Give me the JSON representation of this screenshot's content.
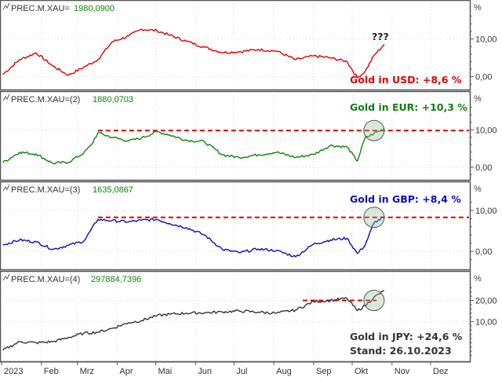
{
  "chart_data": [
    {
      "type": "line",
      "legend": {
        "symbol": "PREC.M.XAU=",
        "value": "1980,0900"
      },
      "annotation": "Gold in USD: +8,6 %",
      "extra_text": "???",
      "y_unit": "%",
      "y_ticks": [
        "10,00",
        "0,00"
      ],
      "y_range": [
        -3,
        17
      ],
      "color": "#e00000",
      "x": [
        "2023-01-02",
        "2023-01-15",
        "2023-01-28",
        "2023-02-10",
        "2023-02-22",
        "2023-03-06",
        "2023-03-17",
        "2023-03-28",
        "2023-04-10",
        "2023-04-20",
        "2023-05-02",
        "2023-05-12",
        "2023-05-25",
        "2023-06-08",
        "2023-06-22",
        "2023-07-05",
        "2023-07-20",
        "2023-08-03",
        "2023-08-18",
        "2023-09-01",
        "2023-09-14",
        "2023-09-27",
        "2023-10-05",
        "2023-10-11",
        "2023-10-18",
        "2023-10-26"
      ],
      "values": [
        0.6,
        4.5,
        6.3,
        2.8,
        0.4,
        2.5,
        4.5,
        9.2,
        10.8,
        12.6,
        12.2,
        11.0,
        9.4,
        7.8,
        6.4,
        6.6,
        7.2,
        6.8,
        4.5,
        5.5,
        5.0,
        4.0,
        -0.3,
        1.4,
        5.6,
        8.6
      ]
    },
    {
      "type": "line",
      "legend": {
        "symbol": "PREC.M.XAU=(2)",
        "value": "1880,0703"
      },
      "annotation": "Gold in EUR: +10,3 %",
      "y_unit": "%",
      "y_ticks": [
        "10,00",
        "0,00"
      ],
      "y_range": [
        -3,
        17
      ],
      "color": "#118011",
      "reference_level": 9.8,
      "x": [
        "2023-01-02",
        "2023-01-15",
        "2023-01-28",
        "2023-02-10",
        "2023-02-22",
        "2023-03-06",
        "2023-03-12",
        "2023-03-17",
        "2023-03-28",
        "2023-04-10",
        "2023-04-20",
        "2023-05-02",
        "2023-05-12",
        "2023-05-25",
        "2023-06-08",
        "2023-06-22",
        "2023-07-05",
        "2023-07-20",
        "2023-08-03",
        "2023-08-18",
        "2023-09-01",
        "2023-09-14",
        "2023-09-27",
        "2023-10-05",
        "2023-10-11",
        "2023-10-18",
        "2023-10-26"
      ],
      "values": [
        1.2,
        4.0,
        3.5,
        1.0,
        1.3,
        3.8,
        6.0,
        9.2,
        8.0,
        7.0,
        7.8,
        9.5,
        8.6,
        7.2,
        6.8,
        3.3,
        2.6,
        3.3,
        4.0,
        2.6,
        3.4,
        5.8,
        5.4,
        1.6,
        7.8,
        9.0,
        10.3
      ]
    },
    {
      "type": "line",
      "legend": {
        "symbol": "PREC.M.XAU=(3)",
        "value": "1635,0867"
      },
      "annotation": "Gold in GBP: +8,4 %",
      "y_unit": "%",
      "y_ticks": [
        "10,00",
        "0,00"
      ],
      "y_range": [
        -4,
        14
      ],
      "color": "#0a0ac8",
      "reference_level": 8.3,
      "x": [
        "2023-01-02",
        "2023-01-15",
        "2023-01-28",
        "2023-02-10",
        "2023-02-22",
        "2023-03-06",
        "2023-03-17",
        "2023-03-28",
        "2023-04-10",
        "2023-04-20",
        "2023-05-02",
        "2023-05-12",
        "2023-05-25",
        "2023-06-08",
        "2023-06-22",
        "2023-07-05",
        "2023-07-20",
        "2023-08-03",
        "2023-08-18",
        "2023-09-01",
        "2023-09-14",
        "2023-09-27",
        "2023-10-05",
        "2023-10-11",
        "2023-10-18",
        "2023-10-26"
      ],
      "values": [
        1.6,
        2.8,
        2.3,
        0.5,
        1.5,
        2.5,
        7.8,
        7.5,
        7.2,
        7.6,
        7.8,
        6.8,
        5.8,
        4.0,
        0.5,
        -0.3,
        0.6,
        0.2,
        -1.3,
        1.8,
        2.8,
        3.2,
        -0.5,
        1.5,
        7.0,
        8.4
      ]
    },
    {
      "type": "line",
      "legend": {
        "symbol": "PREC.M.XAU=(4)",
        "value": "297884,7396"
      },
      "annotation": "Gold in JPY: +24,6 %",
      "footnote": "Stand: 26.10.2023",
      "y_unit": "%",
      "y_ticks": [
        "20,00",
        "10,00"
      ],
      "y_range": [
        -8,
        28
      ],
      "color": "#333333",
      "reference_level": 20.0,
      "x": [
        "2023-01-02",
        "2023-01-15",
        "2023-01-28",
        "2023-02-10",
        "2023-02-22",
        "2023-03-06",
        "2023-03-17",
        "2023-03-28",
        "2023-04-10",
        "2023-04-20",
        "2023-05-02",
        "2023-05-12",
        "2023-05-25",
        "2023-06-08",
        "2023-06-22",
        "2023-07-05",
        "2023-07-20",
        "2023-08-03",
        "2023-08-18",
        "2023-09-01",
        "2023-09-14",
        "2023-09-27",
        "2023-10-05",
        "2023-10-11",
        "2023-10-18",
        "2023-10-26"
      ],
      "values": [
        -3.5,
        0.5,
        0.0,
        0.5,
        2.5,
        4.5,
        5.0,
        6.8,
        9.5,
        10.5,
        12.8,
        13.5,
        14.0,
        14.2,
        14.6,
        15.0,
        14.5,
        14.0,
        15.5,
        19.5,
        20.0,
        21.0,
        15.2,
        17.5,
        21.5,
        24.6
      ]
    }
  ],
  "x_axis": {
    "ticks": [
      "2023",
      "Feb",
      "Mrz",
      "Apr",
      "Mai",
      "Jun",
      "Jul",
      "Aug",
      "Sep",
      "Okt",
      "Nov",
      "Dez"
    ],
    "range": [
      "2023-01-01",
      "2023-12-31"
    ]
  },
  "colors": {
    "legend_value": "#118011",
    "reference_line": "#e00000",
    "panel_border": "#555555",
    "grid": "#d6d6d6"
  }
}
